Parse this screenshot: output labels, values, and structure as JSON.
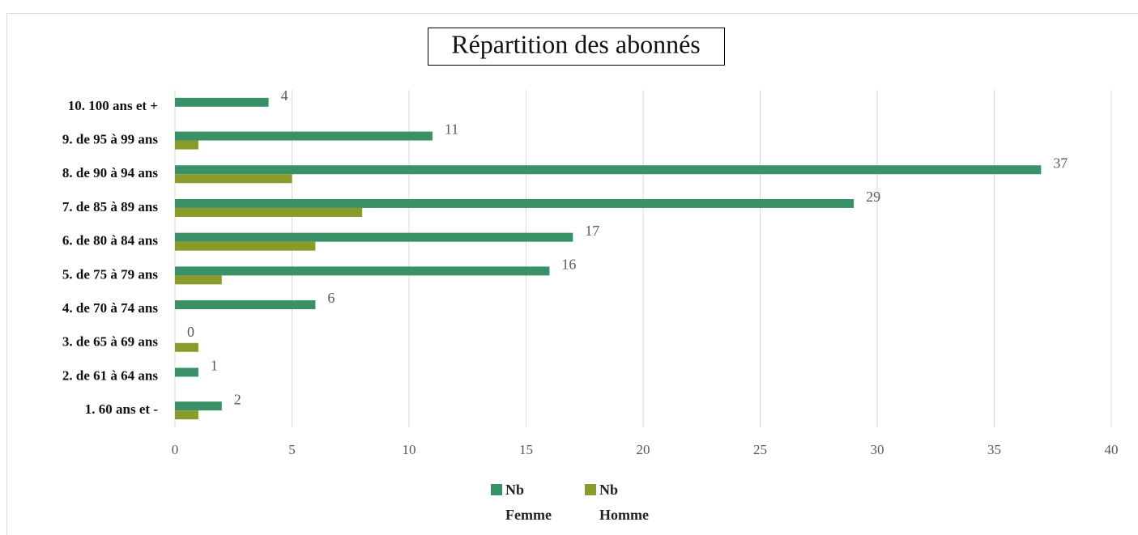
{
  "chart_data": {
    "type": "hbar",
    "title": "Répartition des abonnés",
    "categories": [
      "1. 60 ans et -",
      "2. de 61 à 64 ans",
      "3. de 65 à 69 ans",
      "4. de 70 à 74 ans",
      "5. de 75 à 79 ans",
      "6. de 80 à 84 ans",
      "7. de 85 à 89 ans",
      "8. de 90 à 94 ans",
      "9. de 95 à 99 ans",
      "10. 100 ans et +"
    ],
    "series": [
      {
        "name": "Nb Femme",
        "color": "#3a9168",
        "values": [
          2,
          1,
          0,
          6,
          16,
          17,
          29,
          37,
          11,
          4
        ],
        "data_labels": true
      },
      {
        "name": "Nb Homme",
        "color": "#8a9b2b",
        "values": [
          1,
          0,
          1,
          0,
          2,
          6,
          8,
          5,
          1,
          0
        ],
        "data_labels": false
      }
    ],
    "xlim": [
      0,
      40
    ],
    "xticks": [
      0,
      5,
      10,
      15,
      20,
      25,
      30,
      35,
      40
    ],
    "grid": true,
    "legend": "bottom"
  }
}
